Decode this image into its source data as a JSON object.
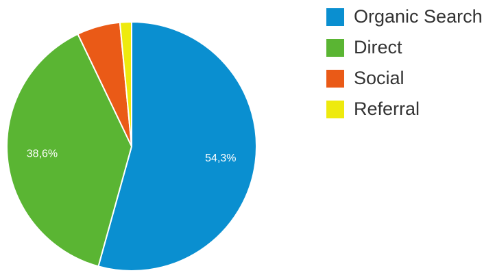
{
  "chart_data": {
    "type": "pie",
    "categories": [
      "Organic Search",
      "Direct",
      "Social",
      "Referral"
    ],
    "values": [
      54.3,
      38.6,
      5.6,
      1.5
    ],
    "data_labels": [
      "54,3%",
      "38,6%",
      "",
      ""
    ],
    "colors": [
      "#0a8fd0",
      "#5ab533",
      "#ea5a17",
      "#eeea0e"
    ],
    "legend_placement": "right"
  }
}
